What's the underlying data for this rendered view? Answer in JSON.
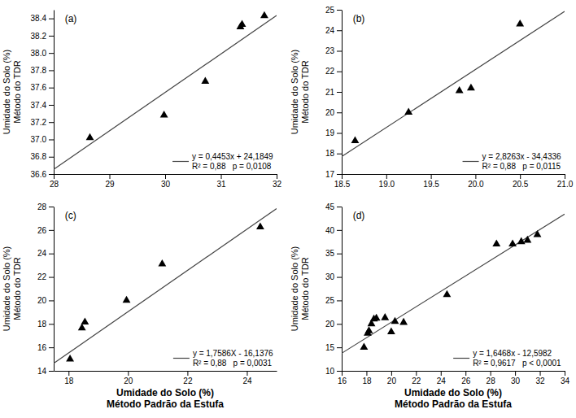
{
  "chart_data": [
    {
      "type": "scatter",
      "annotation": "(a)",
      "y_label": "Umidade do Solo (%)\nMétodo do TDR",
      "series": [
        {
          "type": "scatter",
          "marker": "triangle",
          "color": "black",
          "x": [
            28.65,
            29.98,
            30.72,
            31.35,
            31.38,
            31.78
          ],
          "values": [
            37.02,
            37.28,
            37.67,
            38.3,
            38.33,
            38.43
          ]
        },
        {
          "type": "line",
          "color": "#444444",
          "name": "y = 0,4453x + 24,1849\nR² = 0,88   p = 0,0108",
          "x": [
            28,
            32
          ],
          "values": [
            36.6533,
            38.4345
          ]
        }
      ],
      "xlim": [
        28,
        32
      ],
      "ylim": [
        36.6,
        38.5
      ],
      "xticks": [
        28,
        29,
        30,
        31,
        32
      ],
      "yticks": [
        36.6,
        36.8,
        {
          "value": 37.0,
          "label": "37.0"
        },
        37.2,
        37.4,
        37.6,
        37.8,
        {
          "value": 38.0,
          "label": "38.0"
        },
        38.2,
        38.4
      ],
      "legend": "lower right",
      "grid": false
    },
    {
      "type": "scatter",
      "annotation": "(b)",
      "y_label": "Umidade do Solo (%)\nMétodo do TDR",
      "series": [
        {
          "type": "scatter",
          "marker": "triangle",
          "color": "black",
          "x": [
            18.65,
            19.25,
            19.82,
            19.95,
            20.5
          ],
          "values": [
            18.62,
            20.0,
            21.05,
            21.18,
            24.3
          ]
        },
        {
          "type": "line",
          "color": "#444444",
          "name": "y = 2,8263x - 34,4336\nR² = 0,88   p = 0,0115",
          "x": [
            18.5,
            21.0
          ],
          "values": [
            17.85295,
            24.9187
          ]
        }
      ],
      "xlim": [
        18.5,
        21.0
      ],
      "ylim": [
        17,
        25
      ],
      "xticks": [
        18.5,
        {
          "value": 19.0,
          "label": "19.0"
        },
        19.5,
        {
          "value": 20.0,
          "label": "20.0"
        },
        20.5,
        {
          "value": 21.0,
          "label": "21.0"
        }
      ],
      "yticks": [
        17,
        18,
        19,
        20,
        21,
        22,
        23,
        24,
        25
      ],
      "legend": "lower right",
      "grid": false
    },
    {
      "type": "scatter",
      "annotation": "(c)",
      "y_label": "Umidade do Solo (%)\nMétodo do TDR",
      "x_label": "Umidade do Solo (%)\nMétodo Padrão da Estufa",
      "series": [
        {
          "type": "scatter",
          "marker": "triangle",
          "color": "black",
          "x": [
            18.05,
            18.45,
            18.55,
            19.95,
            21.15,
            24.45
          ],
          "values": [
            15.0,
            17.65,
            18.15,
            20.0,
            23.1,
            26.25
          ]
        },
        {
          "type": "line",
          "color": "#444444",
          "name": "y = 1,7586X - 16,1376\nR² = 0,88   p = 0,0031",
          "x": [
            17.5,
            25
          ],
          "values": [
            14.6379,
            27.8274
          ]
        }
      ],
      "xlim": [
        17.5,
        25
      ],
      "ylim": [
        14,
        28
      ],
      "xticks": [
        18,
        20,
        22,
        24
      ],
      "yticks": [
        14,
        16,
        18,
        20,
        22,
        24,
        26,
        28
      ],
      "legend": "lower right",
      "grid": false
    },
    {
      "type": "scatter",
      "annotation": "(d)",
      "y_label": "Umidade do Solo (%)\nMétodo do TDR",
      "x_label": "Umidade do Solo (%)\nMétodo Padrão da Estufa",
      "series": [
        {
          "type": "scatter",
          "marker": "triangle",
          "color": "black",
          "x": [
            17.8,
            18.1,
            18.2,
            18.4,
            18.6,
            18.8,
            19.5,
            20.0,
            20.3,
            21.0,
            24.5,
            28.5,
            29.8,
            30.5,
            31.0,
            31.8
          ],
          "values": [
            15.0,
            18.0,
            18.5,
            20.0,
            21.0,
            21.2,
            21.3,
            18.3,
            20.5,
            20.3,
            26.2,
            37.0,
            37.0,
            37.5,
            37.8,
            39.0
          ]
        },
        {
          "type": "line",
          "color": "#444444",
          "name": "y = 1,6468x - 12,5982\nR² = 0,9617   p < 0,0001",
          "x": [
            16,
            34
          ],
          "values": [
            13.7506,
            43.393
          ]
        }
      ],
      "xlim": [
        16,
        34
      ],
      "ylim": [
        10,
        45
      ],
      "xticks": [
        16,
        18,
        20,
        22,
        24,
        26,
        28,
        30,
        32,
        34
      ],
      "yticks": [
        10,
        15,
        20,
        25,
        30,
        35,
        40,
        45
      ],
      "legend": "lower right",
      "grid": false
    }
  ]
}
